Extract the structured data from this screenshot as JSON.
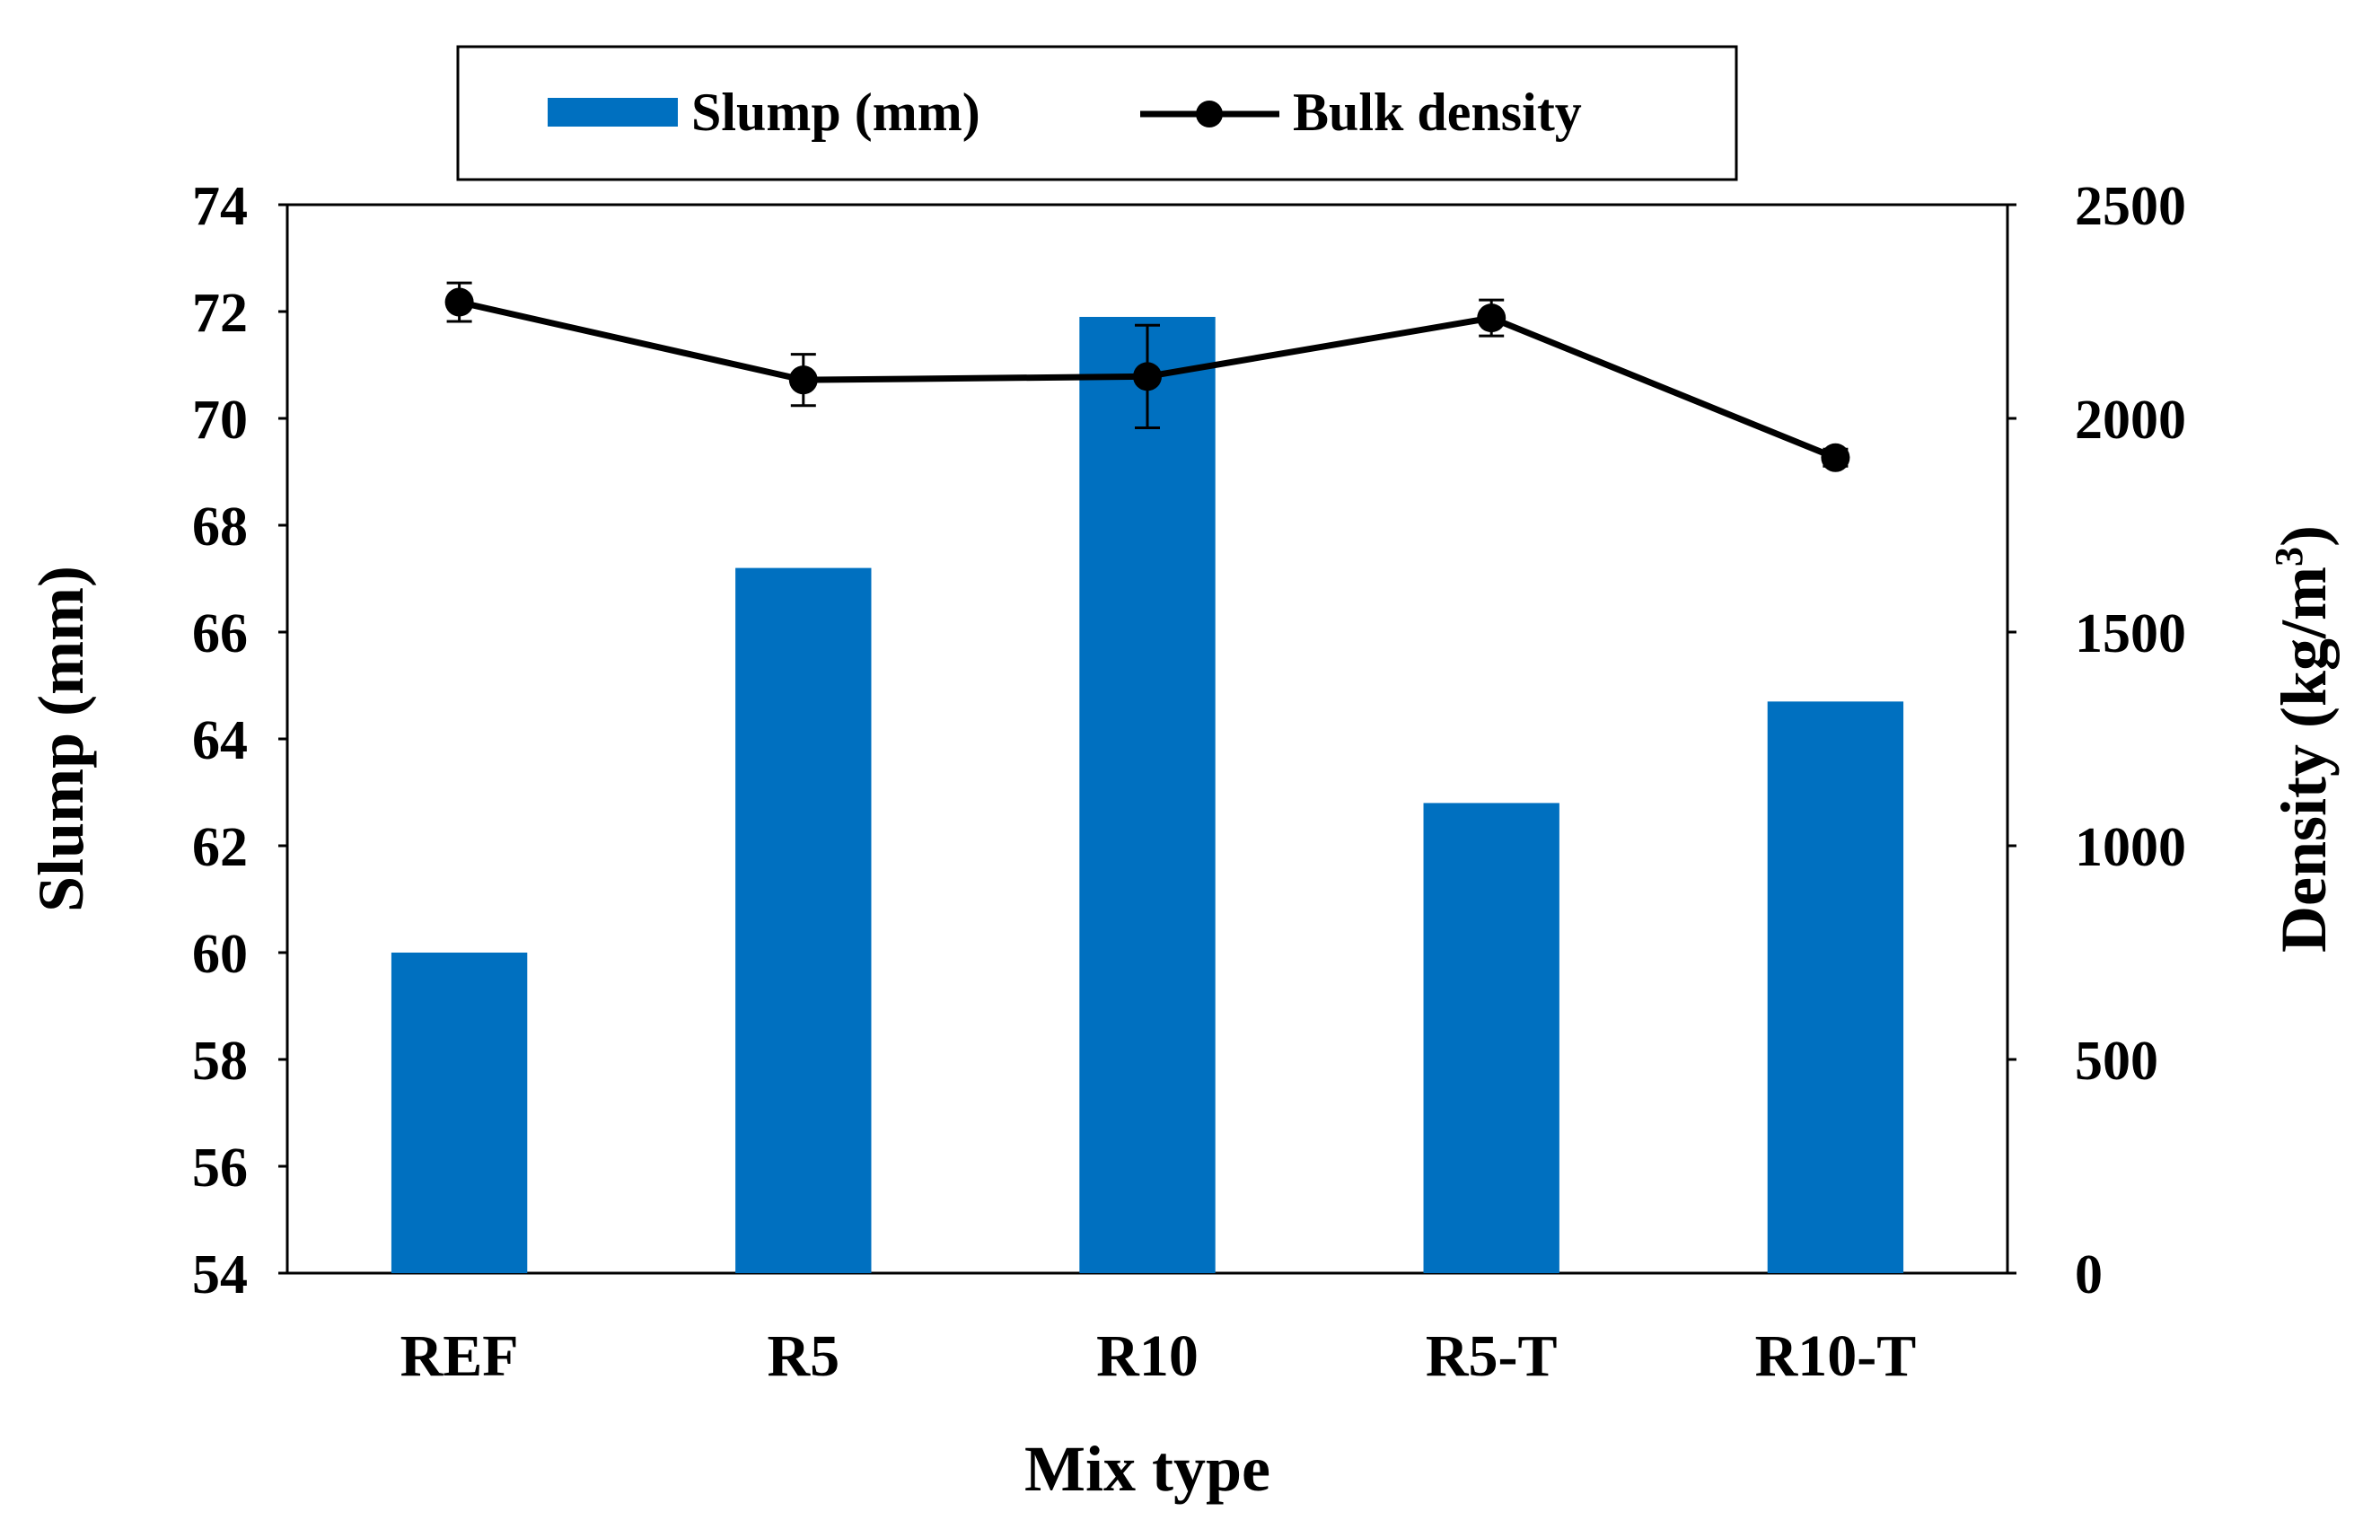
{
  "chart_data": {
    "type": "bar",
    "title": "",
    "xlabel": "Mix type",
    "ylabel": "Slump (mm)",
    "y2label_main": "Density (kg/m",
    "y2label_sup": "3",
    "y2label_close": ")",
    "categories": [
      "REF",
      "R5",
      "R10",
      "R5-T",
      "R10-T"
    ],
    "ylim": [
      54,
      74
    ],
    "yticks": [
      54,
      56,
      58,
      60,
      62,
      64,
      66,
      68,
      70,
      72,
      74
    ],
    "y2lim": [
      0,
      2500
    ],
    "y2ticks": [
      0,
      500,
      1000,
      1500,
      2000,
      2500
    ],
    "legend_position": "top-center",
    "series": [
      {
        "name": "Slump (mm)",
        "type": "bar",
        "axis": "left",
        "color": "#0070C0",
        "values": [
          60,
          67.2,
          71.9,
          62.8,
          64.7
        ]
      },
      {
        "name": "Bulk density",
        "type": "line",
        "axis": "right",
        "color": "#000000",
        "values": [
          2272,
          2090,
          2098,
          2235,
          1908
        ],
        "error": [
          45,
          60,
          120,
          42,
          20
        ]
      }
    ]
  }
}
